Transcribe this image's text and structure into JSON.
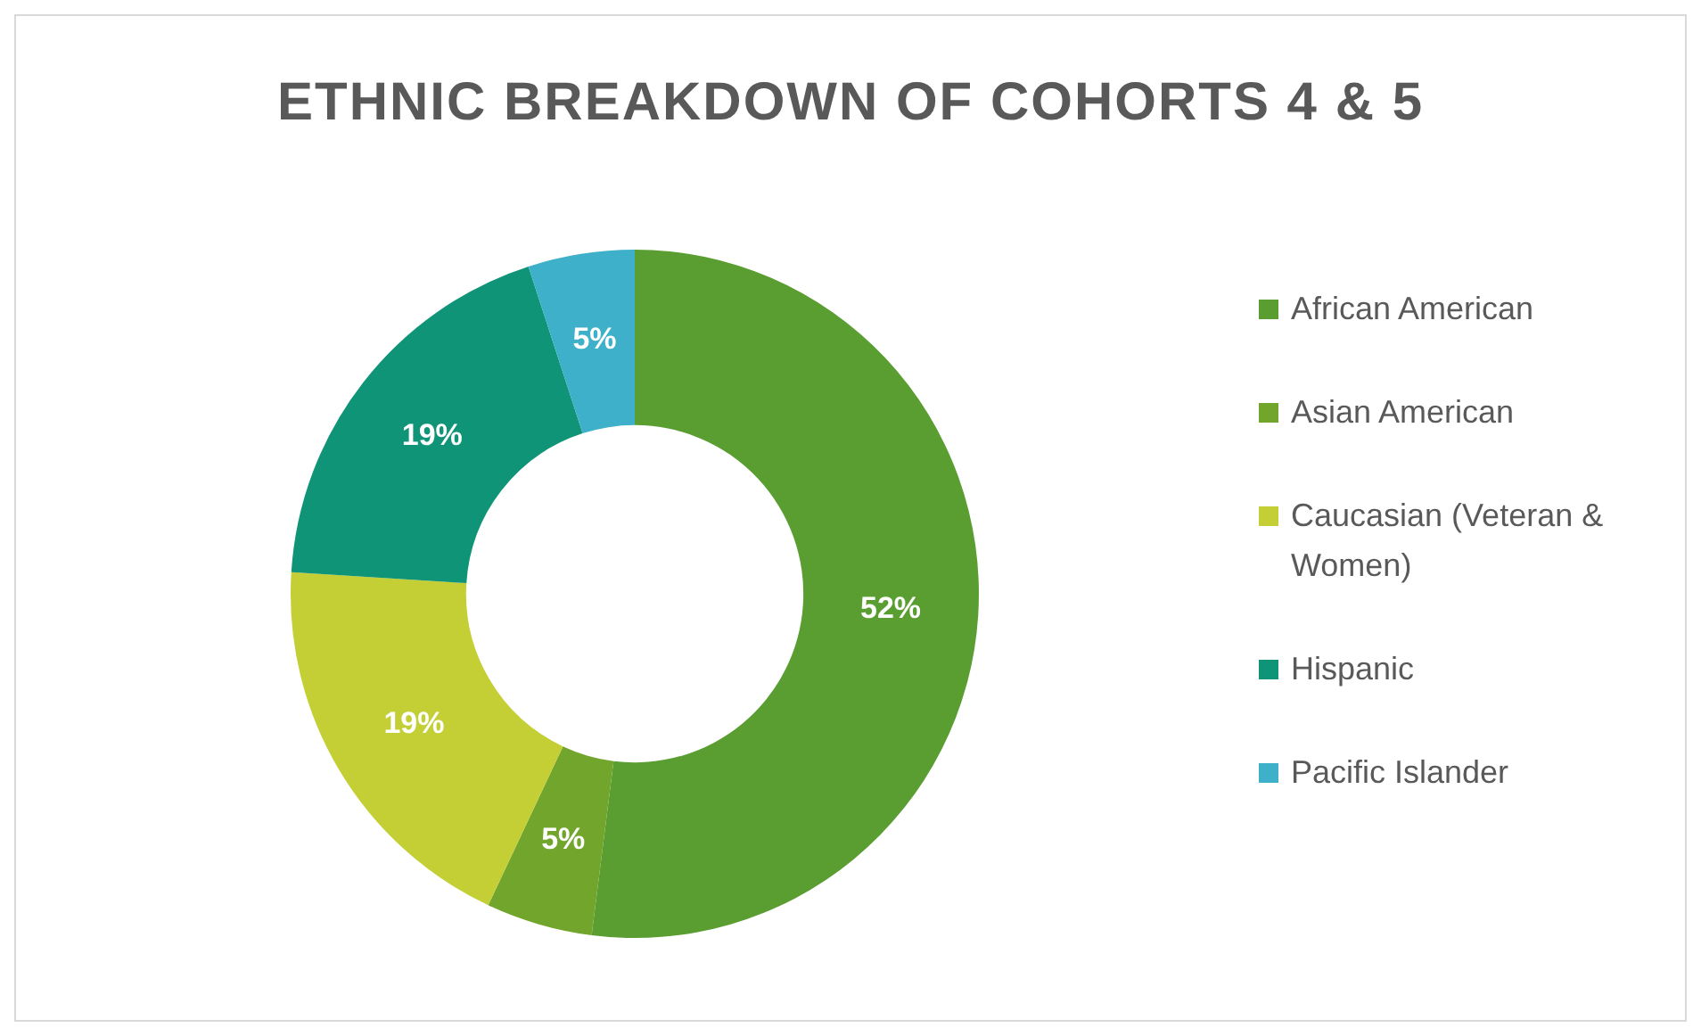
{
  "chart_data": {
    "type": "donut",
    "title": "ETHNIC BREAKDOWN OF COHORTS 4 & 5",
    "categories": [
      "African American",
      "Asian American",
      "Caucasian (Veteran & Women)",
      "Hispanic",
      "Pacific Islander"
    ],
    "values": [
      52,
      5,
      19,
      19,
      5
    ],
    "colors": [
      "#5a9e32",
      "#72a52b",
      "#c3cf34",
      "#0f9477",
      "#3fb0c9"
    ],
    "value_labels": [
      "52%",
      "5%",
      "19%",
      "19%",
      "5%"
    ],
    "legend": "right"
  }
}
